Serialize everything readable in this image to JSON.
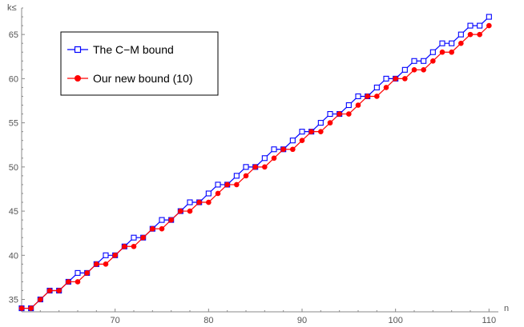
{
  "chart_data": {
    "type": "line",
    "xlabel": "n",
    "ylabel": "k≤",
    "xlim": [
      60,
      111
    ],
    "ylim": [
      33.6,
      68
    ],
    "xticks": [
      70,
      80,
      90,
      100,
      110
    ],
    "yticks": [
      35,
      40,
      45,
      50,
      55,
      60,
      65
    ],
    "grid": false,
    "legend_position": "top-left",
    "x": [
      60,
      61,
      62,
      63,
      64,
      65,
      66,
      67,
      68,
      69,
      70,
      71,
      72,
      73,
      74,
      75,
      76,
      77,
      78,
      79,
      80,
      81,
      82,
      83,
      84,
      85,
      86,
      87,
      88,
      89,
      90,
      91,
      92,
      93,
      94,
      95,
      96,
      97,
      98,
      99,
      100,
      101,
      102,
      103,
      104,
      105,
      106,
      107,
      108,
      109,
      110
    ],
    "series": [
      {
        "name": "The C−M bound",
        "color": "#0000ff",
        "marker": "open-square",
        "values": [
          34,
          34,
          35,
          36,
          36,
          37,
          38,
          38,
          39,
          40,
          40,
          41,
          42,
          42,
          43,
          44,
          44,
          45,
          46,
          46,
          47,
          48,
          48,
          49,
          50,
          50,
          51,
          52,
          52,
          53,
          54,
          54,
          55,
          56,
          56,
          57,
          58,
          58,
          59,
          60,
          60,
          61,
          62,
          62,
          63,
          64,
          64,
          65,
          66,
          66,
          67
        ]
      },
      {
        "name": "Our new bound (10)",
        "color": "#ff0000",
        "marker": "filled-circle",
        "values": [
          34,
          34,
          35,
          36,
          36,
          37,
          37,
          38,
          39,
          39,
          40,
          41,
          41,
          42,
          43,
          43,
          44,
          45,
          45,
          46,
          46,
          47,
          48,
          48,
          49,
          50,
          50,
          51,
          52,
          52,
          53,
          54,
          54,
          55,
          56,
          56,
          57,
          58,
          58,
          59,
          60,
          60,
          61,
          61,
          62,
          63,
          63,
          64,
          65,
          65,
          66
        ]
      }
    ]
  }
}
